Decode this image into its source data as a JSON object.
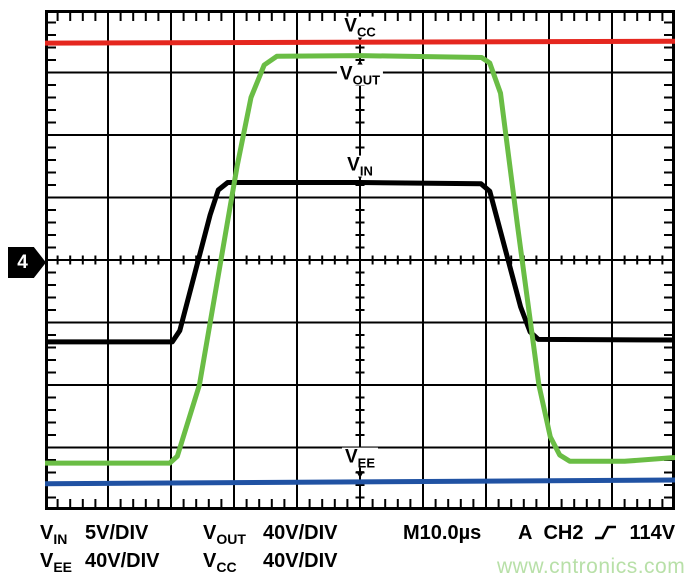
{
  "scope": {
    "channel_marker": "4"
  },
  "colors": {
    "vcc_red": "#e5271f",
    "vout_green": "#6abd45",
    "vin_black": "#000000",
    "vee_blue": "#2052a3",
    "grid": "#000000",
    "watermark_green": "#b8e0a8"
  },
  "chart_data": {
    "type": "line",
    "title": "",
    "x_divisions": 10,
    "y_divisions": 8,
    "minor_ticks_per_division": 5,
    "timebase_per_division": "10.0µs",
    "grid": "on",
    "note": "Oscilloscope capture; points_div are [x,y] in graticule divisions, y measured from top edge.",
    "series": [
      {
        "name": "V_CC",
        "label": {
          "main": "V",
          "sub": "CC"
        },
        "color_key": "vcc_red",
        "scale": "40V/DIV",
        "label_anchor_div": [
          5,
          0.27
        ],
        "pointer_div": {
          "x": 5,
          "from": 0.4,
          "to": 0.5
        },
        "points_div": [
          [
            0,
            0.53
          ],
          [
            10,
            0.5
          ]
        ]
      },
      {
        "name": "V_OUT",
        "label": {
          "main": "V",
          "sub": "OUT"
        },
        "color_key": "vout_green",
        "scale": "40V/DIV",
        "label_anchor_div": [
          5,
          1.04
        ],
        "pointer_div": {
          "x": 5,
          "from": 0.92,
          "to": 0.8
        },
        "points_div": [
          [
            0,
            7.25
          ],
          [
            1.98,
            7.25
          ],
          [
            2.1,
            7.14
          ],
          [
            2.45,
            6.0
          ],
          [
            3.05,
            2.5
          ],
          [
            3.27,
            1.4
          ],
          [
            3.48,
            0.88
          ],
          [
            3.68,
            0.74
          ],
          [
            5.0,
            0.73
          ],
          [
            6.93,
            0.76
          ],
          [
            7.06,
            0.85
          ],
          [
            7.23,
            1.33
          ],
          [
            7.5,
            3.45
          ],
          [
            7.84,
            6.0
          ],
          [
            8.02,
            6.83
          ],
          [
            8.17,
            7.12
          ],
          [
            8.33,
            7.22
          ],
          [
            9.2,
            7.22
          ],
          [
            10,
            7.16
          ]
        ]
      },
      {
        "name": "V_IN",
        "label": {
          "main": "V",
          "sub": "IN"
        },
        "color_key": "vin_black",
        "scale": "5V/DIV",
        "label_anchor_div": [
          5,
          2.5
        ],
        "pointer_div": {
          "x": 5,
          "from": 2.63,
          "to": 2.72
        },
        "points_div": [
          [
            0,
            5.31
          ],
          [
            2.02,
            5.31
          ],
          [
            2.14,
            5.13
          ],
          [
            2.62,
            3.28
          ],
          [
            2.75,
            2.88
          ],
          [
            2.9,
            2.76
          ],
          [
            5.0,
            2.76
          ],
          [
            6.92,
            2.78
          ],
          [
            7.06,
            2.9
          ],
          [
            7.55,
            4.75
          ],
          [
            7.7,
            5.15
          ],
          [
            7.83,
            5.27
          ],
          [
            10,
            5.28
          ]
        ]
      },
      {
        "name": "V_EE",
        "label": {
          "main": "V",
          "sub": "EE"
        },
        "color_key": "vee_blue",
        "scale": "40V/DIV",
        "label_anchor_div": [
          5,
          7.16
        ],
        "pointer_div": {
          "x": 5,
          "from": 7.29,
          "to": 7.49
        },
        "points_div": [
          [
            0,
            7.58
          ],
          [
            10,
            7.52
          ]
        ]
      }
    ]
  },
  "footer": {
    "readouts": [
      {
        "label": {
          "main": "V",
          "sub": "IN"
        },
        "value": "5V/DIV"
      },
      {
        "label": {
          "main": "V",
          "sub": "EE"
        },
        "value": "40V/DIV"
      },
      {
        "label": {
          "main": "V",
          "sub": "OUT"
        },
        "value": "40V/DIV"
      },
      {
        "label": {
          "main": "V",
          "sub": "CC"
        },
        "value": "40V/DIV"
      }
    ],
    "timebase": "M10.0µs",
    "trigger": {
      "mode": "A",
      "source": "CH2",
      "edge": "rising",
      "level": "114V"
    }
  },
  "watermark": "www.cntronics.com"
}
